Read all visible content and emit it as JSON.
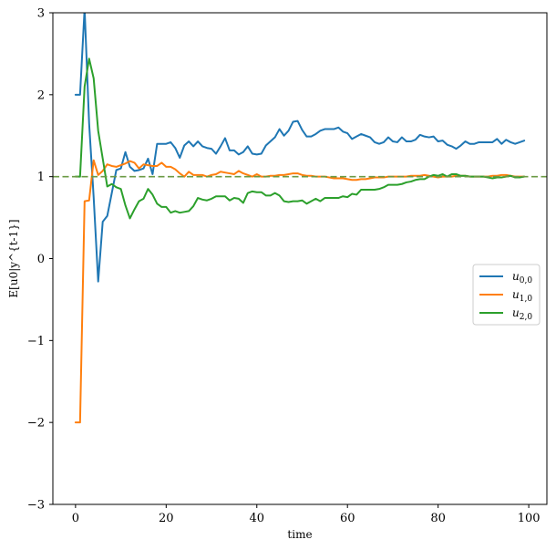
{
  "chart_data": {
    "type": "line",
    "xlabel": "time",
    "ylabel": "E[u0|y^{t-1}]",
    "xlim": [
      -5,
      104
    ],
    "ylim": [
      -3,
      3
    ],
    "xticks": [
      0,
      20,
      40,
      60,
      80,
      100
    ],
    "yticks": [
      -3,
      -2,
      -1,
      0,
      1,
      2,
      3
    ],
    "xtick_labels": [
      "0",
      "20",
      "40",
      "60",
      "80",
      "100"
    ],
    "ytick_labels": [
      "−3",
      "−2",
      "−1",
      "0",
      "1",
      "2",
      "3"
    ],
    "grid": false,
    "legend_position": "center-right",
    "reference_line": {
      "y": 1.0,
      "style": "dashed",
      "color": "#6b9a44"
    },
    "x": [
      0,
      1,
      2,
      3,
      4,
      5,
      6,
      7,
      8,
      9,
      10,
      11,
      12,
      13,
      14,
      15,
      16,
      17,
      18,
      19,
      20,
      21,
      22,
      23,
      24,
      25,
      26,
      27,
      28,
      29,
      30,
      31,
      32,
      33,
      34,
      35,
      36,
      37,
      38,
      39,
      40,
      41,
      42,
      43,
      44,
      45,
      46,
      47,
      48,
      49,
      50,
      51,
      52,
      53,
      54,
      55,
      56,
      57,
      58,
      59,
      60,
      61,
      62,
      63,
      64,
      65,
      66,
      67,
      68,
      69,
      70,
      71,
      72,
      73,
      74,
      75,
      76,
      77,
      78,
      79,
      80,
      81,
      82,
      83,
      84,
      85,
      86,
      87,
      88,
      89,
      90,
      91,
      92,
      93,
      94,
      95,
      96,
      97,
      98,
      99
    ],
    "series": [
      {
        "name": "u_{0,0}",
        "legend_main": "u",
        "legend_sub": "0,0",
        "color": "#1f77b4",
        "values": [
          2.0,
          2.0,
          3.05,
          1.65,
          0.75,
          -0.28,
          0.45,
          0.52,
          0.8,
          1.08,
          1.1,
          1.3,
          1.12,
          1.07,
          1.08,
          1.1,
          1.22,
          1.03,
          1.4,
          1.4,
          1.4,
          1.42,
          1.35,
          1.23,
          1.38,
          1.43,
          1.37,
          1.43,
          1.37,
          1.35,
          1.34,
          1.28,
          1.37,
          1.47,
          1.32,
          1.32,
          1.27,
          1.3,
          1.37,
          1.28,
          1.27,
          1.28,
          1.38,
          1.43,
          1.48,
          1.58,
          1.5,
          1.56,
          1.67,
          1.68,
          1.57,
          1.49,
          1.49,
          1.52,
          1.56,
          1.58,
          1.58,
          1.58,
          1.6,
          1.55,
          1.53,
          1.46,
          1.49,
          1.52,
          1.5,
          1.48,
          1.42,
          1.4,
          1.42,
          1.48,
          1.43,
          1.42,
          1.48,
          1.43,
          1.43,
          1.45,
          1.51,
          1.49,
          1.48,
          1.49,
          1.43,
          1.44,
          1.39,
          1.37,
          1.34,
          1.38,
          1.43,
          1.4,
          1.4,
          1.42,
          1.42,
          1.42,
          1.42,
          1.46,
          1.4,
          1.45,
          1.42,
          1.4,
          1.42,
          1.44
        ]
      },
      {
        "name": "u_{1,0}",
        "legend_main": "u",
        "legend_sub": "1,0",
        "color": "#ff7f0e",
        "values": [
          -2.0,
          -2.0,
          0.7,
          0.71,
          1.2,
          1.02,
          1.07,
          1.15,
          1.13,
          1.12,
          1.14,
          1.16,
          1.19,
          1.17,
          1.1,
          1.15,
          1.14,
          1.13,
          1.13,
          1.17,
          1.12,
          1.12,
          1.09,
          1.04,
          1.0,
          1.06,
          1.02,
          1.02,
          1.02,
          1.0,
          1.02,
          1.03,
          1.06,
          1.05,
          1.04,
          1.03,
          1.07,
          1.04,
          1.02,
          1.0,
          1.03,
          1.0,
          1.0,
          1.01,
          1.01,
          1.02,
          1.02,
          1.03,
          1.04,
          1.04,
          1.02,
          1.01,
          1.01,
          1.0,
          1.0,
          1.0,
          0.99,
          0.98,
          0.98,
          0.98,
          0.97,
          0.96,
          0.96,
          0.97,
          0.97,
          0.98,
          0.99,
          0.99,
          0.99,
          1.0,
          1.0,
          1.0,
          1.0,
          1.0,
          1.01,
          1.01,
          1.01,
          1.02,
          1.01,
          1.0,
          0.99,
          1.0,
          1.0,
          1.0,
          1.01,
          1.01,
          1.01,
          1.0,
          1.0,
          1.0,
          1.0,
          1.0,
          1.01,
          1.01,
          1.02,
          1.02,
          1.01,
          1.0,
          1.0,
          1.0
        ]
      },
      {
        "name": "u_{2,0}",
        "legend_main": "u",
        "legend_sub": "2,0",
        "color": "#2ca02c",
        "values": [
          1.0,
          1.0,
          2.1,
          2.44,
          2.2,
          1.56,
          1.22,
          0.88,
          0.91,
          0.87,
          0.85,
          0.65,
          0.49,
          0.6,
          0.7,
          0.73,
          0.85,
          0.78,
          0.67,
          0.63,
          0.63,
          0.56,
          0.58,
          0.56,
          0.57,
          0.58,
          0.64,
          0.74,
          0.72,
          0.71,
          0.73,
          0.76,
          0.76,
          0.76,
          0.71,
          0.74,
          0.73,
          0.68,
          0.8,
          0.82,
          0.81,
          0.81,
          0.77,
          0.77,
          0.8,
          0.77,
          0.7,
          0.69,
          0.7,
          0.7,
          0.71,
          0.67,
          0.7,
          0.73,
          0.7,
          0.74,
          0.74,
          0.74,
          0.74,
          0.76,
          0.75,
          0.79,
          0.78,
          0.84,
          0.84,
          0.84,
          0.84,
          0.85,
          0.87,
          0.9,
          0.9,
          0.9,
          0.91,
          0.93,
          0.94,
          0.96,
          0.97,
          0.97,
          1.0,
          1.02,
          1.01,
          1.03,
          1.0,
          1.03,
          1.03,
          1.01,
          1.01,
          1.0,
          1.0,
          1.0,
          1.0,
          0.99,
          0.98,
          0.99,
          0.99,
          1.0,
          1.01,
          0.99,
          0.99,
          1.0
        ]
      }
    ]
  }
}
